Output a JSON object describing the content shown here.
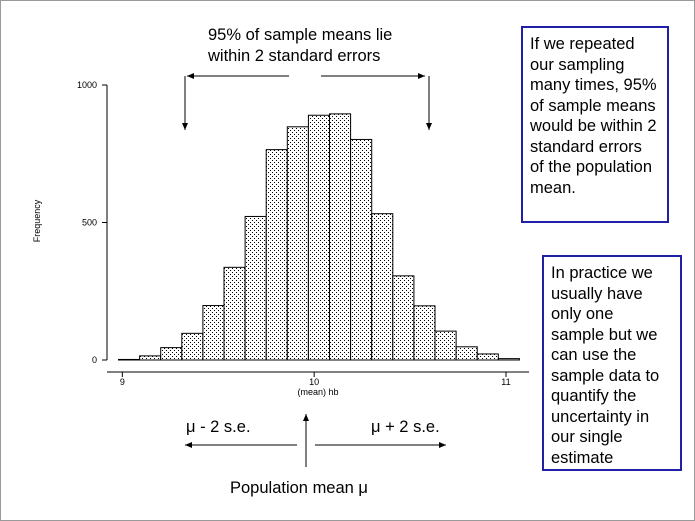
{
  "annotations": {
    "top_lines": [
      "95% of sample means lie",
      "within 2 standard errors"
    ],
    "minus_label": "μ - 2 s.e.",
    "plus_label": "μ + 2 s.e.",
    "pop_mean_label": "Population mean μ"
  },
  "notes": {
    "box1_lines": [
      "If we repeated",
      "our sampling",
      "many times, 95%",
      "of sample means",
      "would be within 2",
      "standard errors",
      "of the population",
      "mean."
    ],
    "box2_lines": [
      "In practice we",
      "usually have",
      "only one",
      "sample but we",
      "can use the",
      "sample data to",
      "quantify the",
      "uncertainty in",
      "our single",
      "estimate"
    ]
  },
  "colors": {
    "box_border": "#1f1fa8",
    "frame": "#9a9a9a"
  },
  "chart_data": {
    "type": "bar",
    "title": "",
    "xlabel": "(mean) hb",
    "ylabel": "Frequency",
    "xlim": [
      8.92,
      11.12
    ],
    "ylim": [
      0,
      1000
    ],
    "x_ticks": [
      "9",
      "10",
      "11"
    ],
    "y_ticks": [
      "0",
      "500",
      "1000"
    ],
    "bin_starts": [
      8.98,
      9.09,
      9.2,
      9.31,
      9.42,
      9.53,
      9.64,
      9.75,
      9.86,
      9.97,
      10.08,
      10.19,
      10.3,
      10.41,
      10.52,
      10.63,
      10.74,
      10.85,
      10.96
    ],
    "bin_width": 0.11,
    "values": [
      2,
      15,
      45,
      97,
      198,
      337,
      522,
      765,
      848,
      890,
      895,
      802,
      532,
      306,
      197,
      105,
      48,
      22,
      5
    ],
    "fill": "dotted"
  }
}
